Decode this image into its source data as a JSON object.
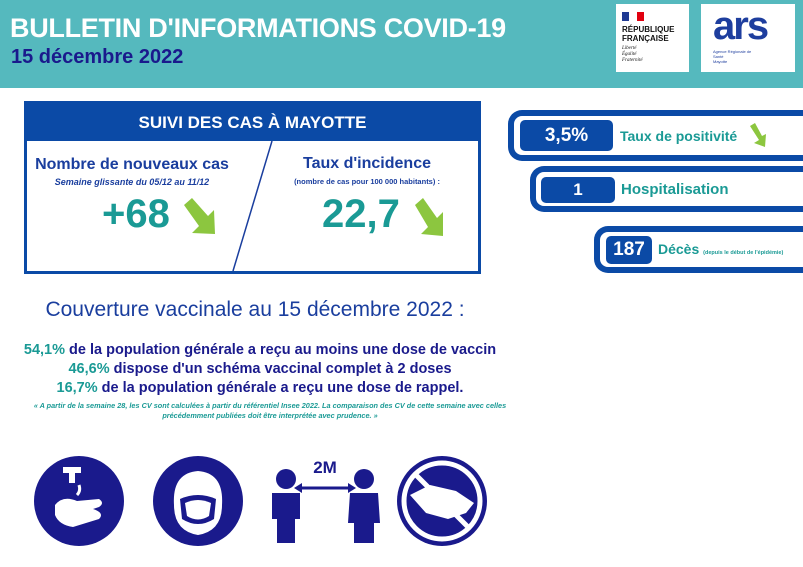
{
  "header": {
    "title": "BULLETIN D'INFORMATIONS COVID-19",
    "date": "15 décembre 2022",
    "logo_rf": {
      "line1": "RÉPUBLIQUE",
      "line2": "FRANÇAISE",
      "motto": [
        "Liberté",
        "Égalité",
        "Fraternité"
      ]
    },
    "logo_ars": {
      "word": "ars",
      "sub": "Agence Régionale de Santé",
      "region": "Mayotte"
    }
  },
  "cases_box": {
    "title": "SUIVI DES CAS À MAYOTTE",
    "new_cases": {
      "label": "Nombre de nouveaux cas",
      "sub": "Semaine glissante du 05/12 au 11/12",
      "value": "+68",
      "trend": "down"
    },
    "incidence": {
      "label": "Taux d'incidence",
      "sub": "(nombre de cas pour 100 000 habitants) :",
      "value": "22,7",
      "trend": "down"
    }
  },
  "indicators": [
    {
      "value": "3,5%",
      "label": "Taux de positivité",
      "trend": "down"
    },
    {
      "value": "1",
      "label": "Hospitalisation"
    },
    {
      "value": "187",
      "label": "Décès",
      "note": "(depuis le début de l'épidémie)"
    }
  ],
  "vaccination": {
    "heading": "Couverture vaccinale au 15 décembre 2022 :",
    "lines": [
      {
        "pct": "54,1%",
        "text": " de la population générale a reçu au moins une dose de vaccin"
      },
      {
        "pct": "46,6%",
        "text": " dispose d'un schéma vaccinal complet à 2 doses"
      },
      {
        "pct": "16,7%",
        "text": " de la population générale a reçu une dose de rappel."
      }
    ],
    "note": "« A partir de la semaine 28, les CV sont calculées à partir du référentiel Insee 2022. La comparaison des CV de cette semaine avec celles précédemment publiées doit être interprétée avec prudence. »"
  },
  "gestures": {
    "distance_label": "2M",
    "icons": [
      "hand-washing-icon",
      "mask-icon",
      "distancing-icon",
      "no-handshake-icon"
    ]
  },
  "colors": {
    "header": "#55b9be",
    "navy": "#1a1a8c",
    "blue": "#0b4aa6",
    "teal": "#1a9a95",
    "arrow": "#8cc63f"
  }
}
